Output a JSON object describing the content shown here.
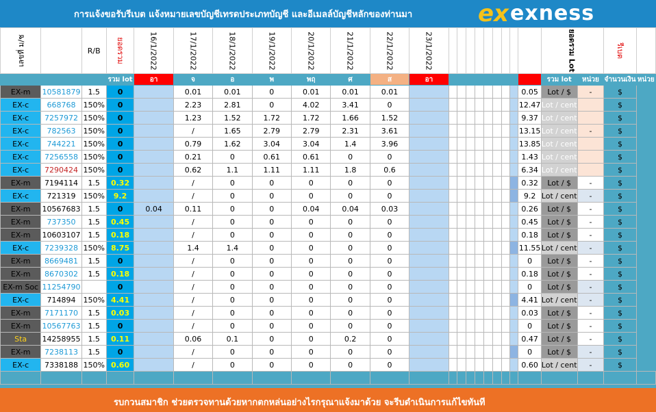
{
  "header": {
    "title": "การแจ้งขอรับรีเบต   แจ้งหมายเลขบัญชีเทรดประเภทบัญชี และอีเมลล์บัญชีหลักของท่านมา",
    "logo_mark": "ex",
    "logo_word": "exness"
  },
  "columns": {
    "platform": "เลขที่ ม/ช",
    "rb": "R/B",
    "total_lot_vertical": "ยอดรวม",
    "dates": [
      "16/1/2022",
      "17/1/2022",
      "18/1/2022",
      "19/1/2022",
      "20/1/2022",
      "21/1/2022",
      "22/1/2022",
      "23/1/2022"
    ],
    "sum_lot_vertical": "ยอดรวม Lot",
    "rebate_vertical": "รีเบต"
  },
  "subheader": {
    "sum_lot": "รวม lot",
    "days": [
      "อา",
      "จ",
      "อ",
      "พ",
      "พฤ",
      "ศ",
      "ส",
      "อา"
    ],
    "sum_lot2": "รวม lot",
    "unit": "หน่วย",
    "amount": "จำนวนเงิน",
    "unit2": "หน่วย"
  },
  "rows": [
    {
      "platform": "EX-m",
      "account": "10581879",
      "rb": "1.5",
      "lot": "0",
      "d16": "",
      "d17": "0.01",
      "d18": "0.01",
      "d19": "0",
      "d20": "0.01",
      "d21": "0.01",
      "d22": "0.01",
      "d23": "",
      "total": "0.05",
      "unit": "Lot / $",
      "amount": "-",
      "cur": "$"
    },
    {
      "platform": "EX-c",
      "account": "668768",
      "rb": "150%",
      "lot": "0",
      "d16": "",
      "d17": "2.23",
      "d18": "2.81",
      "d19": "0",
      "d20": "4.02",
      "d21": "3.41",
      "d22": "0",
      "d23": "",
      "total": "12.47",
      "unit": "Lot / cent",
      "amount": "",
      "cur": "$"
    },
    {
      "platform": "EX-c",
      "account": "7257972",
      "rb": "150%",
      "lot": "0",
      "d16": "",
      "d17": "1.23",
      "d18": "1.52",
      "d19": "1.72",
      "d20": "1.72",
      "d21": "1.66",
      "d22": "1.52",
      "d23": "",
      "total": "9.37",
      "unit": "Lot / cent",
      "amount": "",
      "cur": "$"
    },
    {
      "platform": "EX-c",
      "account": "782563",
      "rb": "150%",
      "lot": "0",
      "d16": "",
      "d17": "/",
      "d18": "1.65",
      "d19": "2.79",
      "d20": "2.79",
      "d21": "2.31",
      "d22": "3.61",
      "d23": "",
      "total": "13.15",
      "unit": "Lot / cent",
      "amount": "-",
      "cur": "$"
    },
    {
      "platform": "EX-c",
      "account": "744221",
      "rb": "150%",
      "lot": "0",
      "d16": "",
      "d17": "0.79",
      "d18": "1.62",
      "d19": "3.04",
      "d20": "3.04",
      "d21": "1.4",
      "d22": "3.96",
      "d23": "",
      "total": "13.85",
      "unit": "Lot / cent",
      "amount": "",
      "cur": "$"
    },
    {
      "platform": "EX-c",
      "account": "7256558",
      "rb": "150%",
      "lot": "0",
      "d16": "",
      "d17": "0.21",
      "d18": "0",
      "d19": "0.61",
      "d20": "0.61",
      "d21": "0",
      "d22": "0",
      "d23": "",
      "total": "1.43",
      "unit": "Lot / cent",
      "amount": "",
      "cur": "$"
    },
    {
      "platform": "EX-c",
      "account": "7290424",
      "rb": "150%",
      "lot": "0",
      "d16": "",
      "d17": "0.62",
      "d18": "1.1",
      "d19": "1.11",
      "d20": "1.11",
      "d21": "1.8",
      "d22": "0.6",
      "d23": "",
      "total": "6.34",
      "unit": "Lot / cent",
      "amount": "",
      "cur": "$"
    },
    {
      "platform": "EX-m",
      "account": "7194114",
      "rb": "1.5",
      "lot": "0.32",
      "d16": "",
      "d17": "/",
      "d18": "0",
      "d19": "0",
      "d20": "0",
      "d21": "0",
      "d22": "0",
      "d23": "",
      "total": "0.32",
      "unit": "Lot / $",
      "amount": "-",
      "cur": "$"
    },
    {
      "platform": "EX-c",
      "account": "721319",
      "rb": "150%",
      "lot": "9.2",
      "d16": "",
      "d17": "/",
      "d18": "0",
      "d19": "0",
      "d20": "0",
      "d21": "0",
      "d22": "0",
      "d23": "",
      "total": "9.2",
      "unit": "Lot / cent",
      "amount": "-",
      "cur": "$"
    },
    {
      "platform": "EX-m",
      "account": "10567683",
      "rb": "1.5",
      "lot": "0",
      "d16": "0.04",
      "d17": "0.11",
      "d18": "0",
      "d19": "0",
      "d20": "0.04",
      "d21": "0.04",
      "d22": "0.03",
      "d23": "",
      "total": "0.26",
      "unit": "Lot / $",
      "amount": "-",
      "cur": "$"
    },
    {
      "platform": "EX-m",
      "account": "737350",
      "rb": "1.5",
      "lot": "0.45",
      "d16": "",
      "d17": "/",
      "d18": "0",
      "d19": "0",
      "d20": "0",
      "d21": "0",
      "d22": "0",
      "d23": "",
      "total": "0.45",
      "unit": "Lot / $",
      "amount": "-",
      "cur": "$"
    },
    {
      "platform": "EX-m",
      "account": "10603107",
      "rb": "1.5",
      "lot": "0.18",
      "d16": "",
      "d17": "/",
      "d18": "0",
      "d19": "0",
      "d20": "0",
      "d21": "0",
      "d22": "0",
      "d23": "",
      "total": "0.18",
      "unit": "Lot / $",
      "amount": "-",
      "cur": "$"
    },
    {
      "platform": "EX-c",
      "account": "7239328",
      "rb": "150%",
      "lot": "8.75",
      "d16": "",
      "d17": "1.4",
      "d18": "1.4",
      "d19": "0",
      "d20": "0",
      "d21": "0",
      "d22": "0",
      "d23": "",
      "total": "11.55",
      "unit": "Lot / cent",
      "amount": "-",
      "cur": "$"
    },
    {
      "platform": "EX-m",
      "account": "8669481",
      "rb": "1.5",
      "lot": "0",
      "d16": "",
      "d17": "/",
      "d18": "0",
      "d19": "0",
      "d20": "0",
      "d21": "0",
      "d22": "0",
      "d23": "",
      "total": "0",
      "unit": "Lot / $",
      "amount": "-",
      "cur": "$"
    },
    {
      "platform": "EX-m",
      "account": "8670302",
      "rb": "1.5",
      "lot": "0.18",
      "d16": "",
      "d17": "/",
      "d18": "0",
      "d19": "0",
      "d20": "0",
      "d21": "0",
      "d22": "0",
      "d23": "",
      "total": "0.18",
      "unit": "Lot / $",
      "amount": "-",
      "cur": "$"
    },
    {
      "platform": "EX-m Soc",
      "account": "11254790",
      "rb": "",
      "lot": "0",
      "d16": "",
      "d17": "/",
      "d18": "0",
      "d19": "0",
      "d20": "0",
      "d21": "0",
      "d22": "0",
      "d23": "",
      "total": "0",
      "unit": "Lot / $",
      "amount": "-",
      "cur": "$"
    },
    {
      "platform": "EX-c",
      "account": "714894",
      "rb": "150%",
      "lot": "4.41",
      "d16": "",
      "d17": "/",
      "d18": "0",
      "d19": "0",
      "d20": "0",
      "d21": "0",
      "d22": "0",
      "d23": "",
      "total": "4.41",
      "unit": "Lot / cent",
      "amount": "-",
      "cur": "$"
    },
    {
      "platform": "EX-m",
      "account": "7171170",
      "rb": "1.5",
      "lot": "0.03",
      "d16": "",
      "d17": "/",
      "d18": "0",
      "d19": "0",
      "d20": "0",
      "d21": "0",
      "d22": "0",
      "d23": "",
      "total": "0.03",
      "unit": "Lot / $",
      "amount": "-",
      "cur": "$"
    },
    {
      "platform": "EX-m",
      "account": "10567763",
      "rb": "1.5",
      "lot": "0",
      "d16": "",
      "d17": "/",
      "d18": "0",
      "d19": "0",
      "d20": "0",
      "d21": "0",
      "d22": "0",
      "d23": "",
      "total": "0",
      "unit": "Lot / $",
      "amount": "-",
      "cur": "$"
    },
    {
      "platform": "Sta",
      "account": "14258955",
      "rb": "1.5",
      "lot": "0.11",
      "d16": "",
      "d17": "0.06",
      "d18": "0.1",
      "d19": "0",
      "d20": "0",
      "d21": "0.2",
      "d22": "0",
      "d23": "",
      "total": "0.47",
      "unit": "Lot / $",
      "amount": "-",
      "cur": "$"
    },
    {
      "platform": "EX-m",
      "account": "7238113",
      "rb": "1.5",
      "lot": "0",
      "d16": "",
      "d17": "/",
      "d18": "0",
      "d19": "0",
      "d20": "0",
      "d21": "0",
      "d22": "0",
      "d23": "",
      "total": "0",
      "unit": "Lot / $",
      "amount": "-",
      "cur": "$"
    },
    {
      "platform": "EX-c",
      "account": "7338188",
      "rb": "150%",
      "lot": "0.60",
      "d16": "",
      "d17": "/",
      "d18": "0",
      "d19": "0",
      "d20": "0",
      "d21": "0",
      "d22": "0",
      "d23": "",
      "total": "0.60",
      "unit": "Lot / cent",
      "amount": "-",
      "cur": "$"
    }
  ],
  "footer": {
    "notice": "รบกวนสมาชิก ช่วยตรวจทานด้วยหากตกหล่นอย่างไรกรุณาแจ้งมาด้วย จะรีบดำเนินการแก้ไขทันที"
  }
}
